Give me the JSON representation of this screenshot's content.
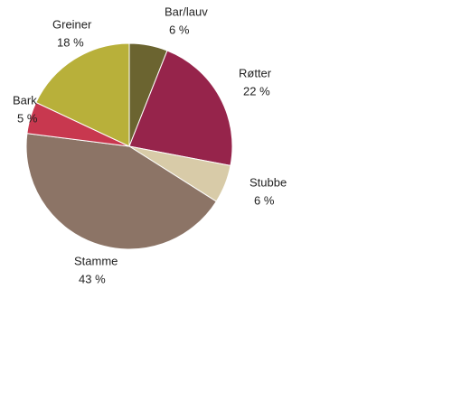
{
  "chart_data": {
    "type": "pie",
    "categories": [
      "Bar/lauv",
      "Røtter",
      "Stubbe",
      "Stamme",
      "Bark",
      "Greiner"
    ],
    "values": [
      6,
      22,
      6,
      43,
      5,
      18
    ],
    "value_labels": [
      "6 %",
      "22 %",
      "6 %",
      "43 %",
      "5 %",
      "18 %"
    ],
    "colors": [
      "#6b6430",
      "#96244b",
      "#d8cba8",
      "#8c7466",
      "#c8384f",
      "#b8b03a"
    ]
  }
}
